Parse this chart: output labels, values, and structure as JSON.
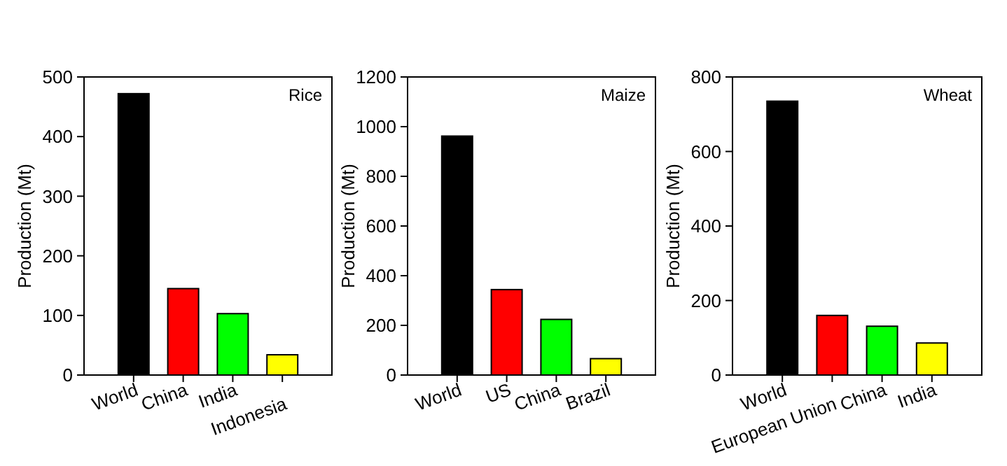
{
  "chart_data": [
    {
      "type": "bar",
      "title": "Rice",
      "ylabel": "Production (Mt)",
      "categories": [
        "World",
        "China",
        "India",
        "Indonesia"
      ],
      "values": [
        472,
        145,
        103,
        34
      ],
      "colors": [
        "#000000",
        "#ff0000",
        "#00ff00",
        "#ffff00"
      ],
      "ylim": [
        0,
        500
      ],
      "yticks": [
        0,
        100,
        200,
        300,
        400,
        500
      ]
    },
    {
      "type": "bar",
      "title": "Maize",
      "ylabel": "Production (Mt)",
      "categories": [
        "World",
        "US",
        "China",
        "Brazil"
      ],
      "values": [
        962,
        344,
        224,
        66
      ],
      "colors": [
        "#000000",
        "#ff0000",
        "#00ff00",
        "#ffff00"
      ],
      "ylim": [
        0,
        1200
      ],
      "yticks": [
        0,
        200,
        400,
        600,
        800,
        1000,
        1200
      ]
    },
    {
      "type": "bar",
      "title": "Wheat",
      "ylabel": "Production (Mt)",
      "categories": [
        "World",
        "European Union",
        "China",
        "India"
      ],
      "values": [
        735,
        160,
        131,
        86
      ],
      "colors": [
        "#000000",
        "#ff0000",
        "#00ff00",
        "#ffff00"
      ],
      "ylim": [
        0,
        800
      ],
      "yticks": [
        0,
        200,
        400,
        600,
        800
      ]
    }
  ]
}
